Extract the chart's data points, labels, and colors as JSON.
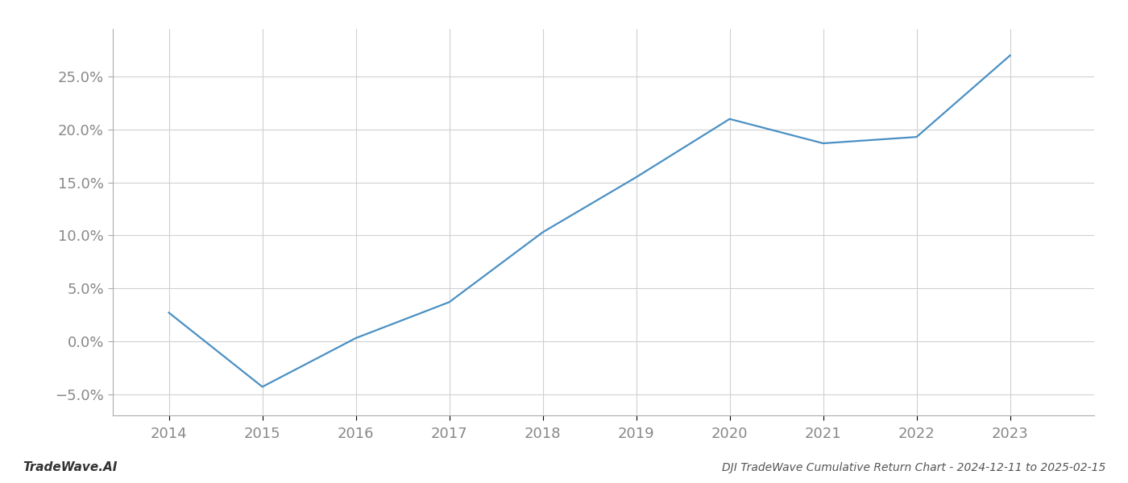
{
  "x_values": [
    2014,
    2015,
    2016,
    2017,
    2018,
    2019,
    2020,
    2021,
    2022,
    2023
  ],
  "y_values": [
    2.7,
    -4.3,
    0.3,
    3.7,
    10.3,
    15.5,
    21.0,
    18.7,
    19.3,
    27.0
  ],
  "line_color": "#4a90c4",
  "line_width": 1.6,
  "title": "DJI TradeWave Cumulative Return Chart - 2024-12-11 to 2025-02-15",
  "watermark_left": "TradeWave.AI",
  "background_color": "#ffffff",
  "grid_color": "#d0d0d0",
  "tick_label_color": "#888888",
  "title_color": "#555555",
  "watermark_color": "#333333",
  "xlim": [
    2013.4,
    2023.9
  ],
  "ylim": [
    -7.0,
    29.5
  ],
  "yticks": [
    -5.0,
    0.0,
    5.0,
    10.0,
    15.0,
    20.0,
    25.0
  ],
  "xticks": [
    2014,
    2015,
    2016,
    2017,
    2018,
    2019,
    2020,
    2021,
    2022,
    2023
  ],
  "figsize": [
    14.0,
    6.0
  ],
  "dpi": 100
}
